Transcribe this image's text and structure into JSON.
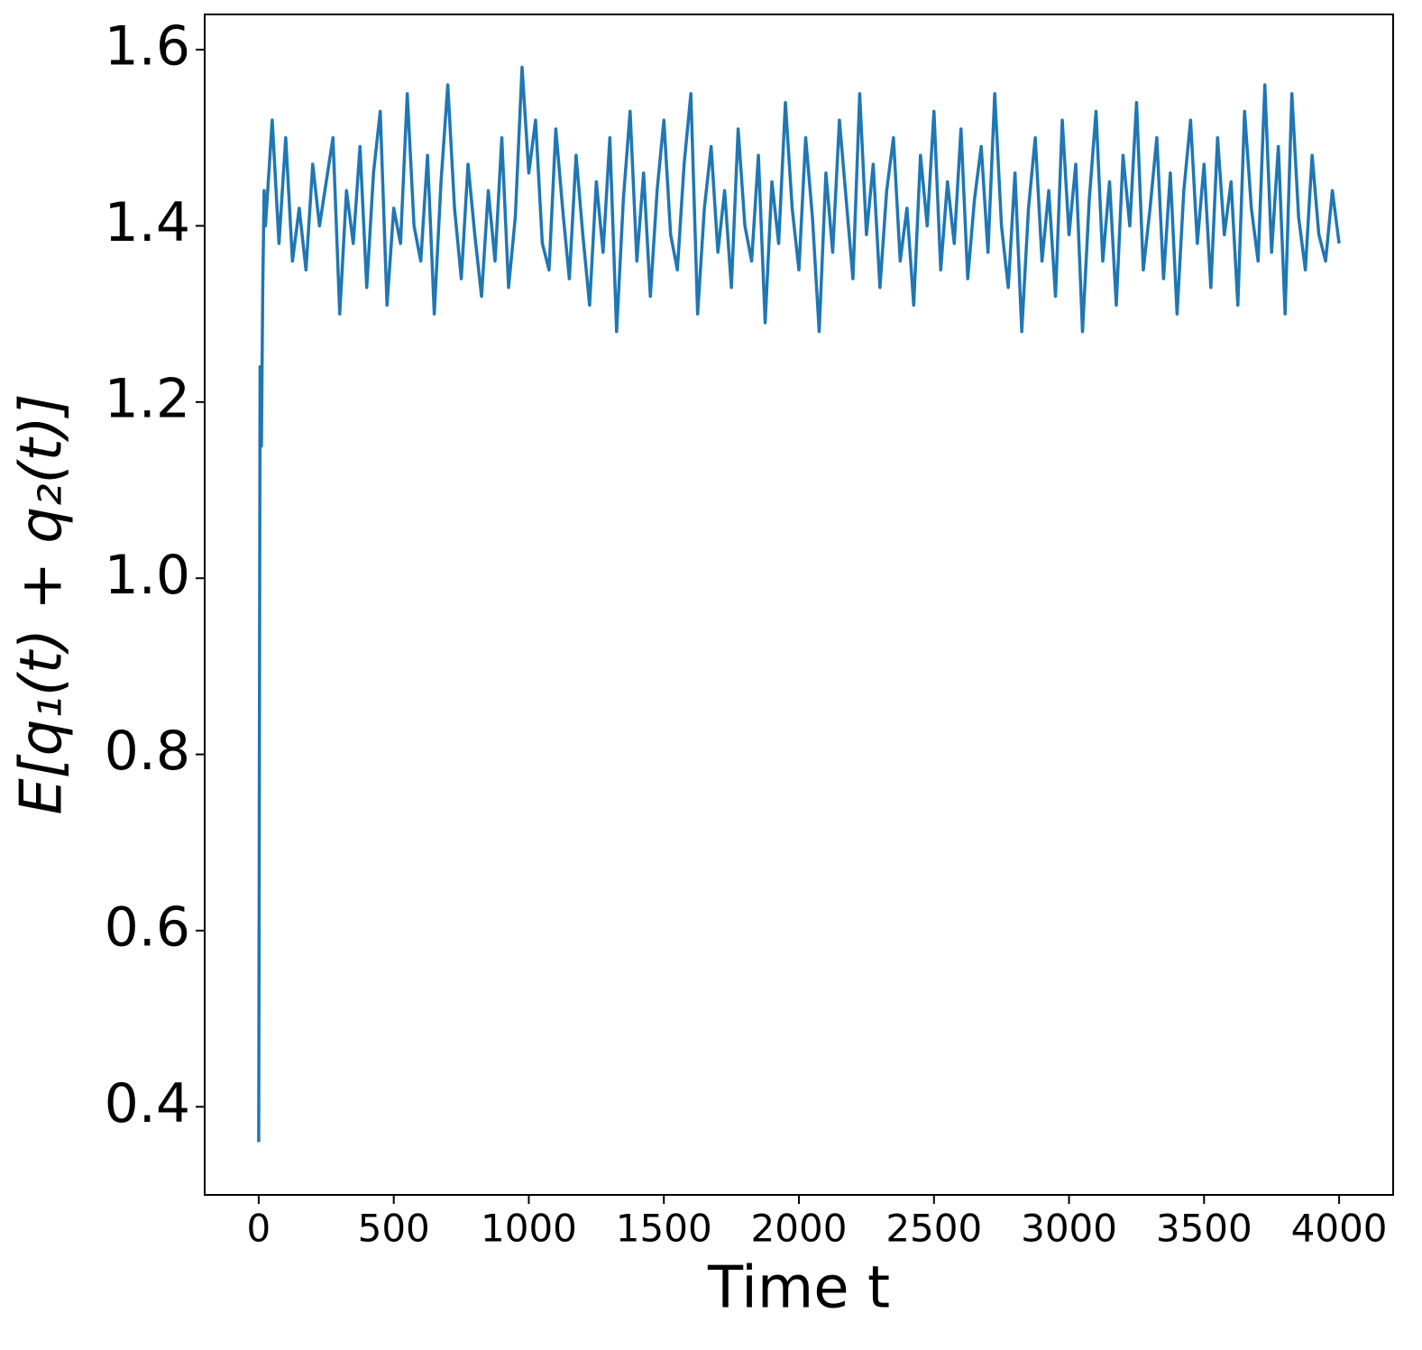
{
  "chart_data": {
    "type": "line",
    "xlabel": "Time t",
    "ylabel": "E[q₁(t) + q₂(t)]",
    "x": [
      0,
      5,
      10,
      15,
      20,
      25,
      50,
      75,
      100,
      125,
      150,
      175,
      200,
      225,
      250,
      275,
      300,
      325,
      350,
      375,
      400,
      425,
      450,
      475,
      500,
      525,
      550,
      575,
      600,
      625,
      650,
      675,
      700,
      725,
      750,
      775,
      800,
      825,
      850,
      875,
      900,
      925,
      950,
      975,
      1000,
      1025,
      1050,
      1075,
      1100,
      1125,
      1150,
      1175,
      1200,
      1225,
      1250,
      1275,
      1300,
      1325,
      1350,
      1375,
      1400,
      1425,
      1450,
      1475,
      1500,
      1525,
      1550,
      1575,
      1600,
      1625,
      1650,
      1675,
      1700,
      1725,
      1750,
      1775,
      1800,
      1825,
      1850,
      1875,
      1900,
      1925,
      1950,
      1975,
      2000,
      2025,
      2050,
      2075,
      2100,
      2125,
      2150,
      2175,
      2200,
      2225,
      2250,
      2275,
      2300,
      2325,
      2350,
      2375,
      2400,
      2425,
      2450,
      2475,
      2500,
      2525,
      2550,
      2575,
      2600,
      2625,
      2650,
      2675,
      2700,
      2725,
      2750,
      2775,
      2800,
      2825,
      2850,
      2875,
      2900,
      2925,
      2950,
      2975,
      3000,
      3025,
      3050,
      3075,
      3100,
      3125,
      3150,
      3175,
      3200,
      3225,
      3250,
      3275,
      3300,
      3325,
      3350,
      3375,
      3400,
      3425,
      3450,
      3475,
      3500,
      3525,
      3550,
      3575,
      3600,
      3625,
      3650,
      3675,
      3700,
      3725,
      3750,
      3775,
      3800,
      3825,
      3850,
      3875,
      3900,
      3925,
      3950,
      3975,
      4000
    ],
    "series": [
      {
        "color": "#1f77b4",
        "values": [
          0.36,
          1.24,
          1.15,
          1.33,
          1.44,
          1.4,
          1.52,
          1.38,
          1.5,
          1.36,
          1.42,
          1.35,
          1.47,
          1.4,
          1.45,
          1.5,
          1.3,
          1.44,
          1.38,
          1.49,
          1.33,
          1.46,
          1.53,
          1.31,
          1.42,
          1.38,
          1.55,
          1.4,
          1.36,
          1.48,
          1.3,
          1.45,
          1.56,
          1.42,
          1.34,
          1.47,
          1.39,
          1.32,
          1.44,
          1.36,
          1.5,
          1.33,
          1.41,
          1.58,
          1.46,
          1.52,
          1.38,
          1.35,
          1.51,
          1.42,
          1.34,
          1.48,
          1.39,
          1.31,
          1.45,
          1.37,
          1.5,
          1.28,
          1.43,
          1.53,
          1.36,
          1.46,
          1.32,
          1.44,
          1.52,
          1.39,
          1.35,
          1.47,
          1.55,
          1.3,
          1.42,
          1.49,
          1.37,
          1.44,
          1.33,
          1.51,
          1.4,
          1.36,
          1.48,
          1.29,
          1.45,
          1.38,
          1.54,
          1.42,
          1.35,
          1.5,
          1.41,
          1.28,
          1.46,
          1.37,
          1.52,
          1.43,
          1.34,
          1.55,
          1.39,
          1.47,
          1.33,
          1.44,
          1.5,
          1.36,
          1.42,
          1.31,
          1.48,
          1.4,
          1.53,
          1.35,
          1.45,
          1.38,
          1.51,
          1.34,
          1.43,
          1.49,
          1.37,
          1.55,
          1.4,
          1.33,
          1.46,
          1.28,
          1.42,
          1.5,
          1.36,
          1.44,
          1.32,
          1.52,
          1.39,
          1.47,
          1.28,
          1.43,
          1.53,
          1.36,
          1.45,
          1.31,
          1.48,
          1.4,
          1.54,
          1.35,
          1.42,
          1.5,
          1.34,
          1.46,
          1.3,
          1.44,
          1.52,
          1.38,
          1.47,
          1.33,
          1.5,
          1.39,
          1.45,
          1.31,
          1.53,
          1.42,
          1.36,
          1.56,
          1.37,
          1.49,
          1.3,
          1.55,
          1.41,
          1.35,
          1.48,
          1.39,
          1.36,
          1.44,
          1.38
        ]
      }
    ],
    "xlim": [
      -200,
      4200
    ],
    "xticks": [
      0,
      500,
      1000,
      1500,
      2000,
      2500,
      3000,
      3500,
      4000
    ],
    "ylim": [
      0.3,
      1.64
    ],
    "yticks": [
      0.4,
      0.6,
      0.8,
      {
        "value": 1,
        "label": "1.0"
      },
      1.2,
      1.4,
      1.6
    ],
    "grid": false
  }
}
